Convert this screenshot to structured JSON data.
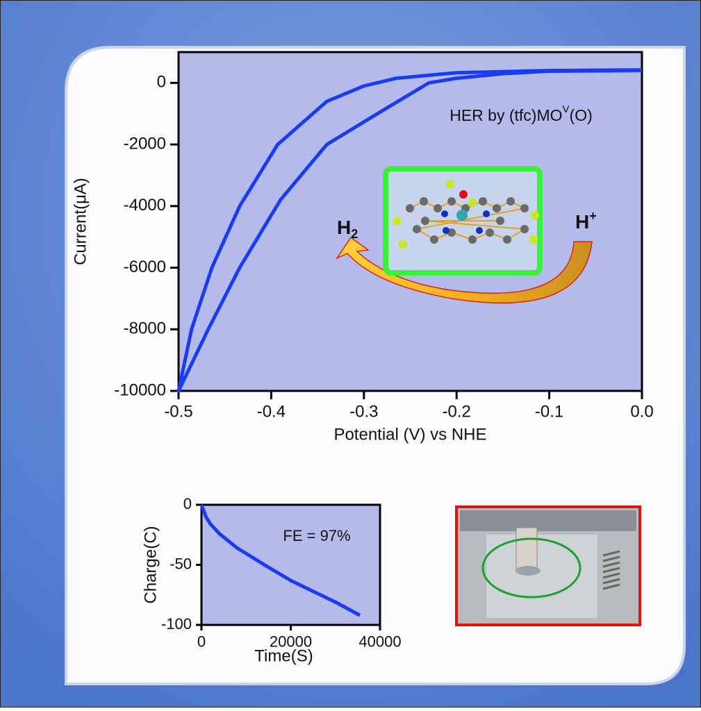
{
  "chart_data": [
    {
      "type": "line",
      "x_label": "Potential (V) vs NHE",
      "y_label": "Current(μA)",
      "annotation": {
        "main": "HER by (tfc)MO",
        "sup": "V",
        "end": "(O)"
      },
      "scheme": {
        "left": "H",
        "left_sub": "2",
        "right": "H",
        "right_sup": "+"
      },
      "series": [
        {
          "color": "#1a3cf0",
          "x": [
            0.0,
            -0.1,
            -0.15,
            -0.2,
            -0.23,
            -0.28,
            -0.34,
            -0.39,
            -0.434,
            -0.468,
            -0.5,
            -0.486,
            -0.464,
            -0.434,
            -0.393,
            -0.34,
            -0.3,
            -0.265,
            -0.2,
            -0.1,
            0.0
          ],
          "values": [
            400,
            380,
            300,
            150,
            0,
            -900,
            -2000,
            -3800,
            -6000,
            -8000,
            -10000,
            -8000,
            -6000,
            -4000,
            -2000,
            -600,
            -100,
            150,
            330,
            400,
            420
          ]
        }
      ],
      "xlim": [
        -0.5,
        0
      ],
      "xticks": [
        -0.5,
        -0.4,
        -0.3,
        -0.2,
        -0.1,
        {
          "value": 0,
          "label": "0.0"
        }
      ],
      "ylim": [
        -10000,
        1000
      ],
      "yticks": [
        0,
        -2000,
        -4000,
        -6000,
        -8000,
        -10000
      ]
    },
    {
      "type": "line",
      "x_label": "Time(S)",
      "y_label": "Charge(C)",
      "annotation": {
        "main": "FE = 97%"
      },
      "series": [
        {
          "color": "#1a3cf0",
          "x": [
            0,
            1000,
            2000,
            4000,
            8000,
            15000,
            20000,
            25000,
            30000,
            35500
          ],
          "values": [
            0,
            -10,
            -16,
            -24,
            -36,
            -52,
            -63,
            -72,
            -81,
            -92
          ]
        }
      ],
      "xlim": [
        0,
        40000
      ],
      "xticks": [
        0,
        20000,
        40000
      ],
      "ylim": [
        -100,
        0
      ],
      "yticks": [
        0,
        -50,
        -100
      ]
    }
  ]
}
